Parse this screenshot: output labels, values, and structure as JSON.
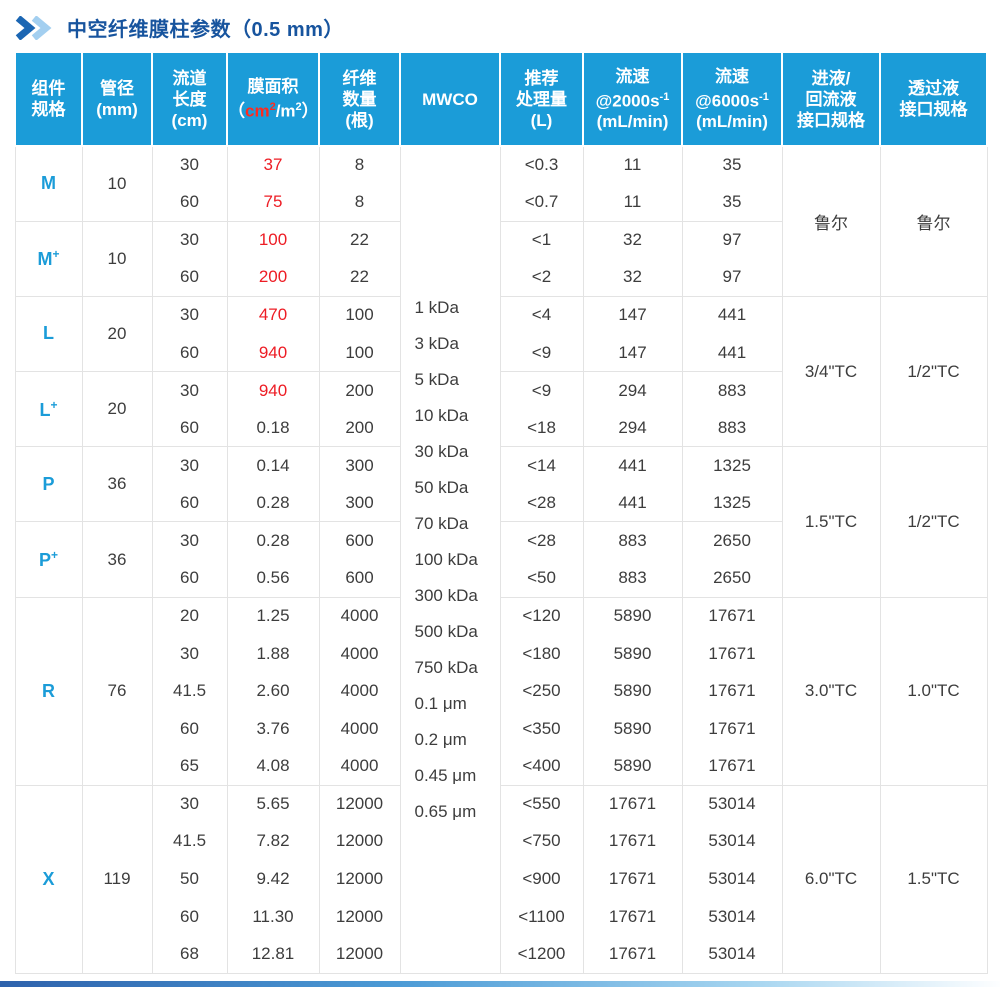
{
  "title": "中空纤维膜柱参数（0.5 mm）",
  "colors": {
    "header_bg": "#1B9CD8",
    "title_blue": "#17549E",
    "label_blue": "#1B9CD8",
    "highlight_red": "#ED1C24",
    "body_text": "#3D3D3D",
    "grid": "#E3E3E3",
    "chevron_dark": "#1B66B3",
    "chevron_light": "#A3CFF0"
  },
  "header": [
    {
      "name": "component-spec",
      "lines": [
        [
          {
            "t": "组件"
          }
        ],
        [
          {
            "t": "规格"
          }
        ]
      ]
    },
    {
      "name": "tube-diameter",
      "lines": [
        [
          {
            "t": "管径"
          }
        ],
        [
          {
            "t": "(mm)"
          }
        ]
      ]
    },
    {
      "name": "channel-length",
      "lines": [
        [
          {
            "t": "流道"
          }
        ],
        [
          {
            "t": "长度"
          }
        ],
        [
          {
            "t": "(cm)"
          }
        ]
      ]
    },
    {
      "name": "membrane-area",
      "lines": [
        [
          {
            "t": "膜面积"
          }
        ],
        [
          {
            "t": "（"
          },
          {
            "t": "cm",
            "red": true
          },
          {
            "t": "2",
            "red": true,
            "sup": true
          },
          {
            "t": "/m"
          },
          {
            "t": "2",
            "sup": true
          },
          {
            "t": "）"
          }
        ]
      ]
    },
    {
      "name": "fiber-count",
      "lines": [
        [
          {
            "t": "纤维"
          }
        ],
        [
          {
            "t": "数量"
          }
        ],
        [
          {
            "t": "(根)"
          }
        ]
      ]
    },
    {
      "name": "mwco",
      "lines": [
        [
          {
            "t": "MWCO"
          }
        ]
      ]
    },
    {
      "name": "recommended-volume",
      "lines": [
        [
          {
            "t": "推荐"
          }
        ],
        [
          {
            "t": "处理量"
          }
        ],
        [
          {
            "t": "(L)"
          }
        ]
      ]
    },
    {
      "name": "flow-2000",
      "lines": [
        [
          {
            "t": "流速"
          }
        ],
        [
          {
            "t": "@2000s"
          },
          {
            "t": "-1",
            "sup": true
          }
        ],
        [
          {
            "t": "(mL/min)"
          }
        ]
      ]
    },
    {
      "name": "flow-6000",
      "lines": [
        [
          {
            "t": "流速"
          }
        ],
        [
          {
            "t": "@6000s"
          },
          {
            "t": "-1",
            "sup": true
          }
        ],
        [
          {
            "t": "(mL/min)"
          }
        ]
      ]
    },
    {
      "name": "inlet-return-port",
      "lines": [
        [
          {
            "t": "进液/"
          }
        ],
        [
          {
            "t": "回流液"
          }
        ],
        [
          {
            "t": "接口规格"
          }
        ]
      ]
    },
    {
      "name": "permeate-port",
      "lines": [
        [
          {
            "t": "透过液"
          }
        ],
        [
          {
            "t": "接口规格"
          }
        ]
      ]
    }
  ],
  "mwco_values": [
    "1 kDa",
    "3 kDa",
    "5 kDa",
    "10 kDa",
    "30 kDa",
    "50 kDa",
    "70 kDa",
    "100 kDa",
    "300 kDa",
    "500 kDa",
    "750 kDa",
    "0.1 μm",
    "0.2 μm",
    "0.45 μm",
    "0.65 μm"
  ],
  "groups": [
    {
      "label": "M",
      "sup": "",
      "diameter": "10",
      "rows": [
        {
          "len": "30",
          "area": "37",
          "red": true,
          "fibers": "8",
          "vol": "<0.3",
          "f2": "11",
          "f6": "35"
        },
        {
          "len": "60",
          "area": "75",
          "red": true,
          "fibers": "8",
          "vol": "<0.7",
          "f2": "11",
          "f6": "35"
        }
      ]
    },
    {
      "label": "M",
      "sup": "+",
      "diameter": "10",
      "rows": [
        {
          "len": "30",
          "area": "100",
          "red": true,
          "fibers": "22",
          "vol": "<1",
          "f2": "32",
          "f6": "97"
        },
        {
          "len": "60",
          "area": "200",
          "red": true,
          "fibers": "22",
          "vol": "<2",
          "f2": "32",
          "f6": "97"
        }
      ]
    },
    {
      "label": "L",
      "sup": "",
      "diameter": "20",
      "rows": [
        {
          "len": "30",
          "area": "470",
          "red": true,
          "fibers": "100",
          "vol": "<4",
          "f2": "147",
          "f6": "441"
        },
        {
          "len": "60",
          "area": "940",
          "red": true,
          "fibers": "100",
          "vol": "<9",
          "f2": "147",
          "f6": "441"
        }
      ]
    },
    {
      "label": "L",
      "sup": "+",
      "diameter": "20",
      "rows": [
        {
          "len": "30",
          "area": "940",
          "red": true,
          "fibers": "200",
          "vol": "<9",
          "f2": "294",
          "f6": "883"
        },
        {
          "len": "60",
          "area": "0.18",
          "red": false,
          "fibers": "200",
          "vol": "<18",
          "f2": "294",
          "f6": "883"
        }
      ]
    },
    {
      "label": "P",
      "sup": "",
      "diameter": "36",
      "rows": [
        {
          "len": "30",
          "area": "0.14",
          "red": false,
          "fibers": "300",
          "vol": "<14",
          "f2": "441",
          "f6": "1325"
        },
        {
          "len": "60",
          "area": "0.28",
          "red": false,
          "fibers": "300",
          "vol": "<28",
          "f2": "441",
          "f6": "1325"
        }
      ]
    },
    {
      "label": "P",
      "sup": "+",
      "diameter": "36",
      "rows": [
        {
          "len": "30",
          "area": "0.28",
          "red": false,
          "fibers": "600",
          "vol": "<28",
          "f2": "883",
          "f6": "2650"
        },
        {
          "len": "60",
          "area": "0.56",
          "red": false,
          "fibers": "600",
          "vol": "<50",
          "f2": "883",
          "f6": "2650"
        }
      ]
    },
    {
      "label": "R",
      "sup": "",
      "diameter": "76",
      "rows": [
        {
          "len": "20",
          "area": "1.25",
          "red": false,
          "fibers": "4000",
          "vol": "<120",
          "f2": "5890",
          "f6": "17671"
        },
        {
          "len": "30",
          "area": "1.88",
          "red": false,
          "fibers": "4000",
          "vol": "<180",
          "f2": "5890",
          "f6": "17671"
        },
        {
          "len": "41.5",
          "area": "2.60",
          "red": false,
          "fibers": "4000",
          "vol": "<250",
          "f2": "5890",
          "f6": "17671"
        },
        {
          "len": "60",
          "area": "3.76",
          "red": false,
          "fibers": "4000",
          "vol": "<350",
          "f2": "5890",
          "f6": "17671"
        },
        {
          "len": "65",
          "area": "4.08",
          "red": false,
          "fibers": "4000",
          "vol": "<400",
          "f2": "5890",
          "f6": "17671"
        }
      ]
    },
    {
      "label": "X",
      "sup": "",
      "diameter": "119",
      "rows": [
        {
          "len": "30",
          "area": "5.65",
          "red": false,
          "fibers": "12000",
          "vol": "<550",
          "f2": "17671",
          "f6": "53014"
        },
        {
          "len": "41.5",
          "area": "7.82",
          "red": false,
          "fibers": "12000",
          "vol": "<750",
          "f2": "17671",
          "f6": "53014"
        },
        {
          "len": "50",
          "area": "9.42",
          "red": false,
          "fibers": "12000",
          "vol": "<900",
          "f2": "17671",
          "f6": "53014"
        },
        {
          "len": "60",
          "area": "11.30",
          "red": false,
          "fibers": "12000",
          "vol": "<1100",
          "f2": "17671",
          "f6": "53014"
        },
        {
          "len": "68",
          "area": "12.81",
          "red": false,
          "fibers": "12000",
          "vol": "<1200",
          "f2": "17671",
          "f6": "53014"
        }
      ]
    }
  ],
  "interfaces": [
    {
      "groups": [
        0,
        1
      ],
      "inlet": "鲁尔",
      "permeate": "鲁尔"
    },
    {
      "groups": [
        2,
        3
      ],
      "inlet": "3/4\"TC",
      "permeate": "1/2\"TC"
    },
    {
      "groups": [
        4,
        5
      ],
      "inlet": "1.5\"TC",
      "permeate": "1/2\"TC"
    },
    {
      "groups": [
        6
      ],
      "inlet": "3.0\"TC",
      "permeate": "1.0\"TC"
    },
    {
      "groups": [
        7
      ],
      "inlet": "6.0\"TC",
      "permeate": "1.5\"TC"
    }
  ]
}
